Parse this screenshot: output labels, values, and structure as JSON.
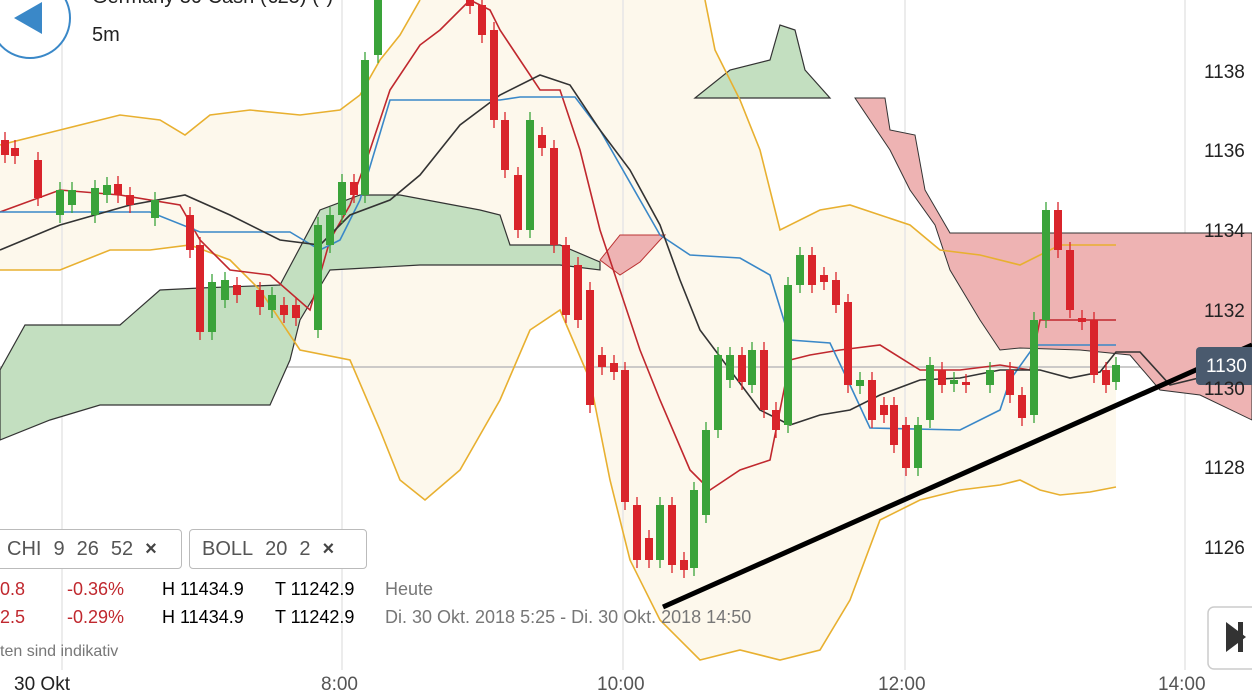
{
  "header": {
    "title": "Germany 30 Cash (€25) (*)",
    "interval": "5m"
  },
  "yaxis": {
    "labels": [
      "1138",
      "1136",
      "1134",
      "1132",
      "1130",
      "1128",
      "1126"
    ]
  },
  "price_tag": "1130",
  "indicators": [
    {
      "name": "CHI",
      "params": [
        "9",
        "26",
        "52"
      ],
      "close": "×"
    },
    {
      "name": "BOLL",
      "params": [
        "20",
        "2"
      ],
      "close": "×"
    }
  ],
  "rows": [
    [
      "0.8",
      "-0.36%",
      "H 11434.9",
      "T 11242.9",
      "Heute"
    ],
    [
      "2.5",
      "-0.29%",
      "H 11434.9",
      "T 11242.9",
      "Di. 30 Okt. 2018 5:25 - Di. 30 Okt. 2018 14:50"
    ]
  ],
  "disclaimer": "ten sind indikativ",
  "xaxis": {
    "labels": [
      "30 Okt",
      "8:00",
      "10:00",
      "12:00",
      "14:00"
    ]
  }
}
